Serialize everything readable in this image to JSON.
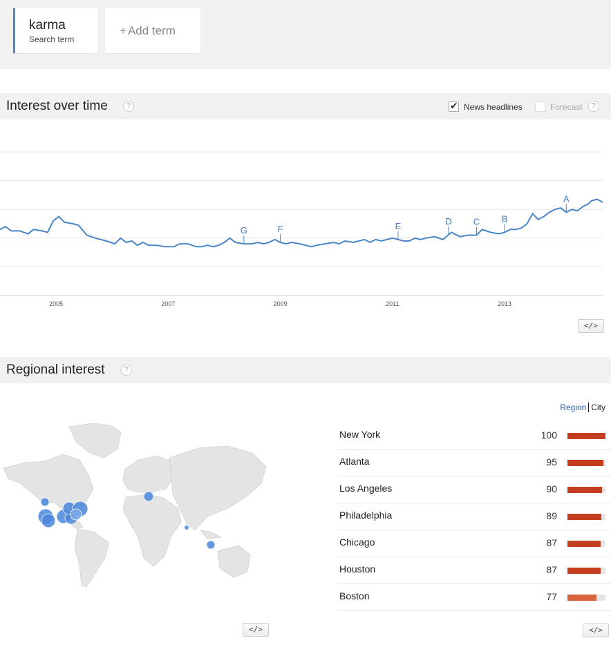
{
  "term": {
    "name": "karma",
    "subtitle": "Search term"
  },
  "add_term": {
    "plus": "+",
    "label": "Add term"
  },
  "interest_over_time": {
    "title": "Interest over time",
    "help": "?",
    "news_headlines_label": "News headlines",
    "news_headlines_checked": true,
    "forecast_label": "Forecast",
    "embed_label": "</>"
  },
  "chart_data": {
    "type": "line",
    "x_ticks": [
      "2005",
      "2007",
      "2009",
      "2011",
      "2013"
    ],
    "x_range": [
      2004.0,
      2014.75
    ],
    "y_range": [
      0,
      100
    ],
    "grid": true,
    "series": [
      {
        "values": [
          [
            2004.0,
            46
          ],
          [
            2004.1,
            48
          ],
          [
            2004.2,
            45
          ],
          [
            2004.35,
            45
          ],
          [
            2004.5,
            43
          ],
          [
            2004.6,
            46
          ],
          [
            2004.75,
            45
          ],
          [
            2004.85,
            44
          ],
          [
            2004.95,
            52
          ],
          [
            2005.05,
            55
          ],
          [
            2005.15,
            51
          ],
          [
            2005.3,
            50
          ],
          [
            2005.4,
            49
          ],
          [
            2005.55,
            42
          ],
          [
            2005.7,
            40
          ],
          [
            2005.9,
            38
          ],
          [
            2006.05,
            36
          ],
          [
            2006.15,
            40
          ],
          [
            2006.25,
            37
          ],
          [
            2006.35,
            38
          ],
          [
            2006.45,
            35
          ],
          [
            2006.55,
            37
          ],
          [
            2006.65,
            35
          ],
          [
            2006.8,
            35
          ],
          [
            2006.95,
            34
          ],
          [
            2007.1,
            34
          ],
          [
            2007.2,
            36
          ],
          [
            2007.35,
            36
          ],
          [
            2007.5,
            34
          ],
          [
            2007.6,
            34
          ],
          [
            2007.7,
            35
          ],
          [
            2007.8,
            34
          ],
          [
            2007.9,
            35
          ],
          [
            2008.0,
            37
          ],
          [
            2008.1,
            40
          ],
          [
            2008.2,
            37
          ],
          [
            2008.35,
            36
          ],
          [
            2008.5,
            36
          ],
          [
            2008.6,
            37
          ],
          [
            2008.7,
            36
          ],
          [
            2008.8,
            37
          ],
          [
            2008.9,
            39
          ],
          [
            2009.0,
            37
          ],
          [
            2009.1,
            36
          ],
          [
            2009.2,
            37
          ],
          [
            2009.35,
            36
          ],
          [
            2009.45,
            35
          ],
          [
            2009.55,
            34
          ],
          [
            2009.65,
            35
          ],
          [
            2009.8,
            36
          ],
          [
            2009.95,
            37
          ],
          [
            2010.05,
            36
          ],
          [
            2010.15,
            38
          ],
          [
            2010.3,
            37
          ],
          [
            2010.4,
            38
          ],
          [
            2010.5,
            39
          ],
          [
            2010.6,
            37
          ],
          [
            2010.7,
            39
          ],
          [
            2010.8,
            38
          ],
          [
            2010.9,
            39
          ],
          [
            2011.0,
            40
          ],
          [
            2011.1,
            39
          ],
          [
            2011.2,
            38
          ],
          [
            2011.3,
            38
          ],
          [
            2011.4,
            40
          ],
          [
            2011.5,
            39
          ],
          [
            2011.6,
            40
          ],
          [
            2011.75,
            41
          ],
          [
            2011.9,
            39
          ],
          [
            2012.05,
            44
          ],
          [
            2012.2,
            41
          ],
          [
            2012.35,
            42
          ],
          [
            2012.5,
            42
          ],
          [
            2012.6,
            46
          ],
          [
            2012.75,
            44
          ],
          [
            2012.9,
            43
          ],
          [
            2013.0,
            44
          ],
          [
            2013.1,
            46
          ],
          [
            2013.2,
            46
          ],
          [
            2013.3,
            47
          ],
          [
            2013.4,
            50
          ],
          [
            2013.5,
            57
          ],
          [
            2013.6,
            53
          ],
          [
            2013.7,
            55
          ],
          [
            2013.8,
            58
          ],
          [
            2013.9,
            60
          ],
          [
            2014.0,
            61
          ],
          [
            2014.1,
            58
          ],
          [
            2014.2,
            60
          ],
          [
            2014.3,
            59
          ],
          [
            2014.4,
            62
          ],
          [
            2014.5,
            64
          ],
          [
            2014.55,
            66
          ],
          [
            2014.65,
            67
          ],
          [
            2014.75,
            65
          ]
        ]
      }
    ],
    "annotations": [
      {
        "letter": "G",
        "x": 2008.35
      },
      {
        "letter": "F",
        "x": 2009.0
      },
      {
        "letter": "E",
        "x": 2011.1
      },
      {
        "letter": "D",
        "x": 2012.0
      },
      {
        "letter": "C",
        "x": 2012.5
      },
      {
        "letter": "B",
        "x": 2013.0
      },
      {
        "letter": "A",
        "x": 2014.1
      }
    ]
  },
  "regional_interest": {
    "title": "Regional interest",
    "help": "?",
    "toggle_region": "Region",
    "toggle_city": "City",
    "embed_label": "</>",
    "rows": [
      {
        "name": "New York",
        "value": 100
      },
      {
        "name": "Atlanta",
        "value": 95
      },
      {
        "name": "Los Angeles",
        "value": 90
      },
      {
        "name": "Philadelphia",
        "value": 89
      },
      {
        "name": "Chicago",
        "value": 87
      },
      {
        "name": "Houston",
        "value": 87
      },
      {
        "name": "Boston",
        "value": 77
      }
    ]
  },
  "colors": {
    "accent": "#4d86c7",
    "line": "#4a86c5",
    "bar": "#c53d1f",
    "bar_light": "#d8643f",
    "bubble": "#4a86dc"
  }
}
